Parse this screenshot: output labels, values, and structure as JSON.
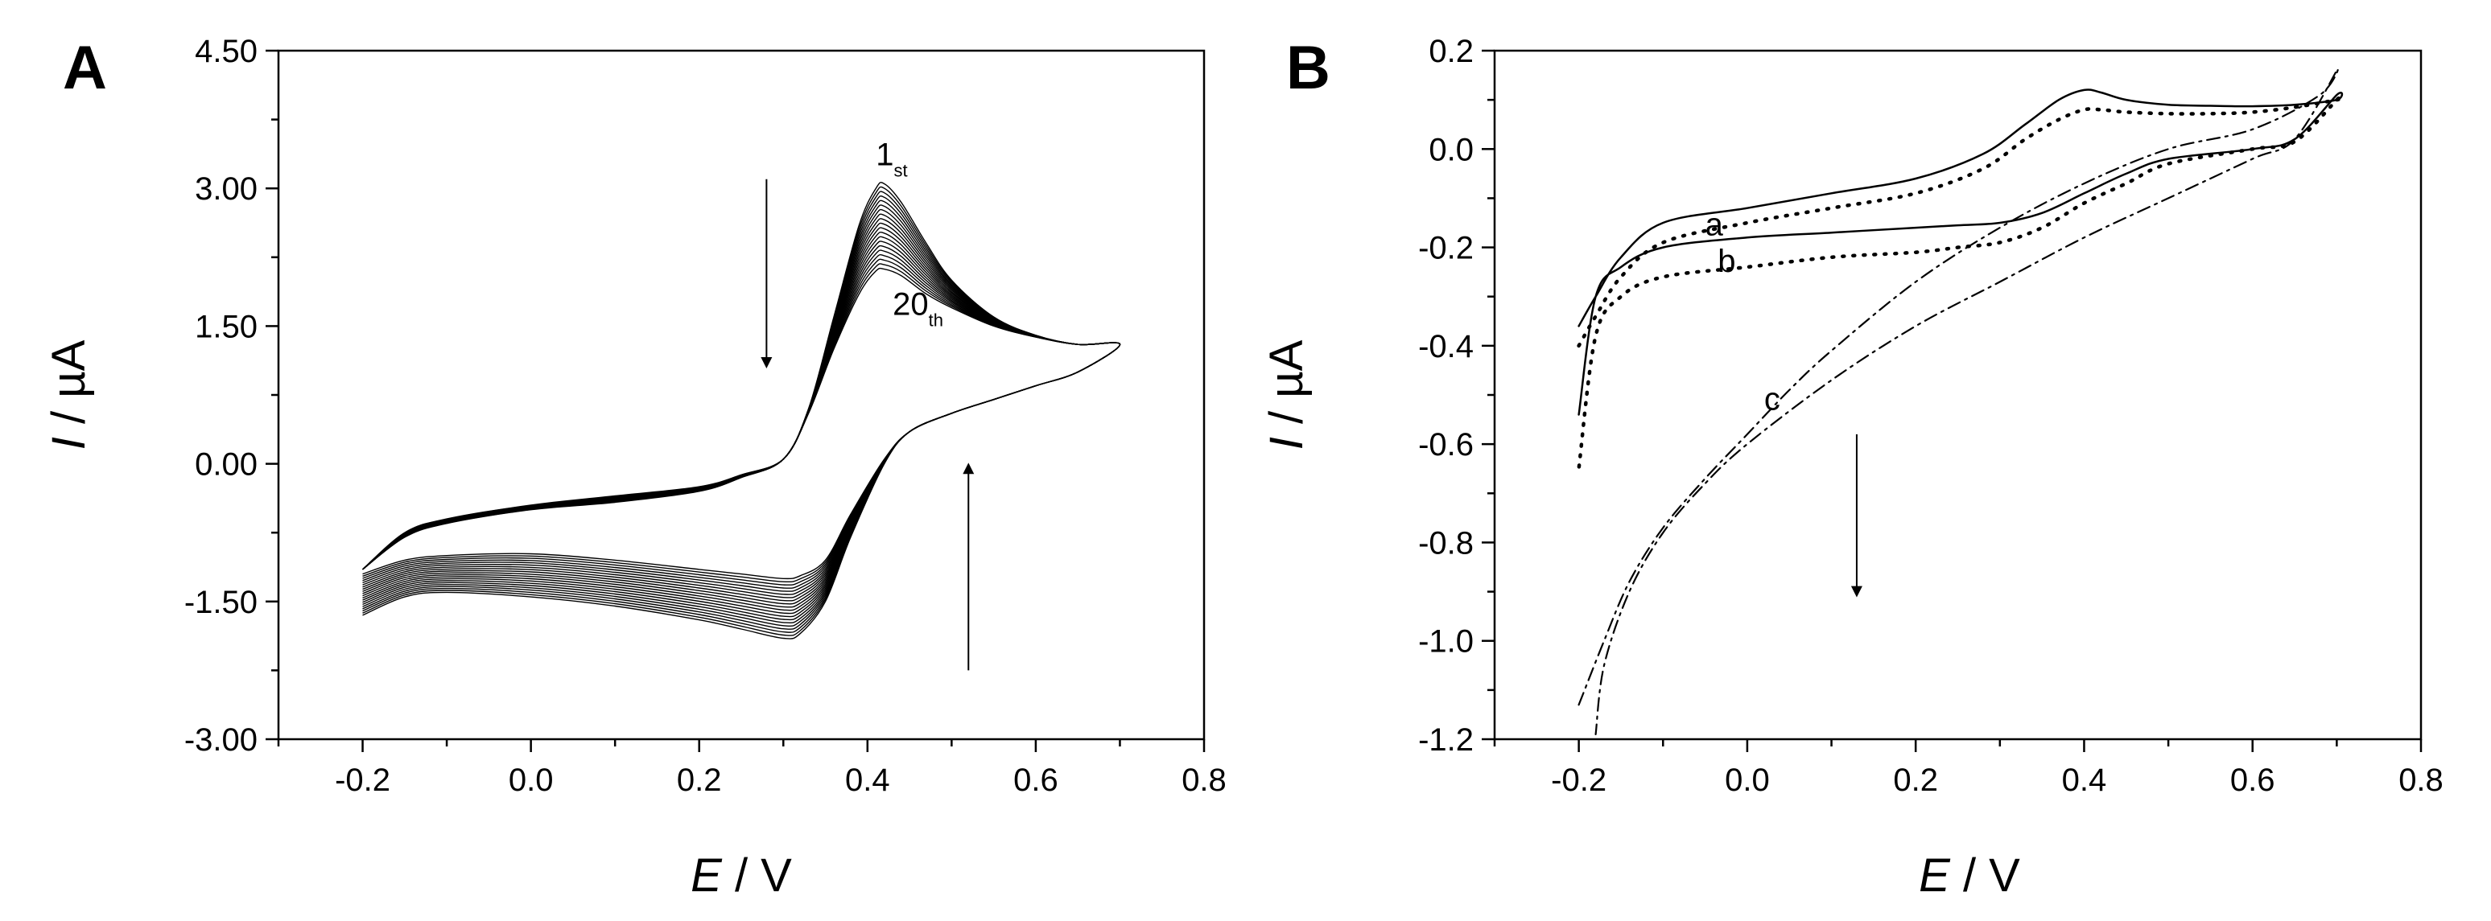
{
  "chart_data": [
    {
      "type": "line",
      "panel_label": "A",
      "xlabel_var": "E",
      "xlabel_unit": " / V",
      "ylabel_var": "I",
      "ylabel_unit": " / µA",
      "xlim": [
        -0.3,
        0.8
      ],
      "ylim": [
        -3.0,
        4.5
      ],
      "xticks": [
        -0.2,
        0.0,
        0.2,
        0.4,
        0.6,
        0.8
      ],
      "xtick_labels": [
        "-0.2",
        "0.0",
        "0.2",
        "0.4",
        "0.6",
        "0.8"
      ],
      "yticks": [
        -3.0,
        -1.5,
        0.0,
        1.5,
        3.0,
        4.5
      ],
      "ytick_labels": [
        "-3.00",
        "-1.50",
        "0.00",
        "1.50",
        "3.00",
        "4.50"
      ],
      "grid": false,
      "series_description": "20 successive cyclic voltammetry scans (1st to 20th)",
      "n_scans": 20,
      "first_scan": {
        "name": "1st",
        "forward_x": [
          -0.2,
          -0.15,
          -0.1,
          0.0,
          0.1,
          0.2,
          0.25,
          0.3,
          0.33,
          0.36,
          0.39,
          0.41,
          0.42,
          0.44,
          0.47,
          0.5,
          0.55,
          0.6,
          0.65,
          0.7
        ],
        "forward_y": [
          -1.15,
          -0.8,
          -0.65,
          -0.5,
          -0.42,
          -0.3,
          -0.15,
          0.05,
          0.6,
          1.6,
          2.6,
          3.0,
          3.05,
          2.85,
          2.4,
          2.0,
          1.6,
          1.4,
          1.3,
          1.3
        ],
        "reverse_x": [
          0.7,
          0.65,
          0.6,
          0.55,
          0.5,
          0.45,
          0.42,
          0.38,
          0.35,
          0.32,
          0.3,
          0.25,
          0.2,
          0.1,
          0.0,
          -0.1,
          -0.15,
          -0.2
        ],
        "reverse_y": [
          1.3,
          1.0,
          0.85,
          0.7,
          0.55,
          0.35,
          0.0,
          -0.8,
          -1.5,
          -1.85,
          -1.9,
          -1.8,
          -1.7,
          -1.55,
          -1.45,
          -1.4,
          -1.45,
          -1.65
        ]
      },
      "last_scan": {
        "name": "20th",
        "forward_x": [
          -0.2,
          -0.15,
          -0.1,
          0.0,
          0.1,
          0.2,
          0.25,
          0.3,
          0.33,
          0.36,
          0.39,
          0.41,
          0.42,
          0.44,
          0.47,
          0.5,
          0.55,
          0.6,
          0.65,
          0.7
        ],
        "forward_y": [
          -1.15,
          -0.75,
          -0.6,
          -0.45,
          -0.35,
          -0.25,
          -0.12,
          0.05,
          0.55,
          1.25,
          1.85,
          2.1,
          2.12,
          2.05,
          1.85,
          1.7,
          1.5,
          1.38,
          1.3,
          1.3
        ],
        "reverse_x": [
          0.7,
          0.65,
          0.6,
          0.55,
          0.5,
          0.45,
          0.42,
          0.38,
          0.35,
          0.32,
          0.3,
          0.25,
          0.2,
          0.1,
          0.0,
          -0.1,
          -0.15,
          -0.2
        ],
        "reverse_y": [
          1.2,
          1.0,
          0.85,
          0.7,
          0.55,
          0.35,
          0.05,
          -0.55,
          -1.05,
          -1.22,
          -1.25,
          -1.2,
          -1.15,
          -1.05,
          -0.98,
          -1.0,
          -1.05,
          -1.2
        ]
      },
      "annotations": [
        {
          "text": "1",
          "sub": "st",
          "x": 0.41,
          "y": 3.25
        },
        {
          "text": "20",
          "sub": "th",
          "x": 0.43,
          "y": 1.62
        }
      ],
      "arrows": [
        {
          "x": 0.28,
          "y_from": 3.1,
          "y_to": 1.1
        },
        {
          "x": 0.52,
          "y_from": -2.25,
          "y_to": -0.05
        }
      ]
    },
    {
      "type": "line",
      "panel_label": "B",
      "xlabel_var": "E",
      "xlabel_unit": " / V",
      "ylabel_var": "I",
      "ylabel_unit": " / µA",
      "xlim": [
        -0.3,
        0.8
      ],
      "ylim": [
        -1.2,
        0.2
      ],
      "xticks": [
        -0.2,
        0.0,
        0.2,
        0.4,
        0.6,
        0.8
      ],
      "xtick_labels": [
        "-0.2",
        "0.0",
        "0.2",
        "0.4",
        "0.6",
        "0.8"
      ],
      "yticks": [
        -1.2,
        -1.0,
        -0.8,
        -0.6,
        -0.4,
        -0.2,
        0.0,
        0.2
      ],
      "ytick_labels": [
        "-1.2",
        "-1.0",
        "-0.8",
        "-0.6",
        "-0.4",
        "-0.2",
        "0.0",
        "0.2"
      ],
      "grid": false,
      "series": [
        {
          "name": "a",
          "style": "solid",
          "x": [
            -0.2,
            -0.18,
            -0.15,
            -0.1,
            0.0,
            0.1,
            0.2,
            0.28,
            0.33,
            0.37,
            0.4,
            0.42,
            0.45,
            0.5,
            0.55,
            0.6,
            0.65,
            0.7,
            0.7,
            0.65,
            0.6,
            0.5,
            0.45,
            0.4,
            0.35,
            0.3,
            0.25,
            0.2,
            0.1,
            0.0,
            -0.1,
            -0.15,
            -0.18,
            -0.2
          ],
          "y": [
            -0.36,
            -0.3,
            -0.22,
            -0.15,
            -0.12,
            -0.09,
            -0.06,
            -0.01,
            0.05,
            0.1,
            0.12,
            0.115,
            0.1,
            0.09,
            0.088,
            0.087,
            0.09,
            0.1,
            0.11,
            0.02,
            0.0,
            -0.02,
            -0.05,
            -0.09,
            -0.13,
            -0.15,
            -0.155,
            -0.16,
            -0.17,
            -0.18,
            -0.2,
            -0.24,
            -0.3,
            -0.54
          ]
        },
        {
          "name": "b",
          "style": "dotted",
          "x": [
            -0.2,
            -0.18,
            -0.15,
            -0.1,
            0.0,
            0.1,
            0.2,
            0.28,
            0.33,
            0.37,
            0.4,
            0.42,
            0.45,
            0.5,
            0.55,
            0.6,
            0.65,
            0.7,
            0.7,
            0.65,
            0.6,
            0.5,
            0.45,
            0.4,
            0.35,
            0.3,
            0.25,
            0.2,
            0.1,
            0.0,
            -0.1,
            -0.15,
            -0.18,
            -0.2
          ],
          "y": [
            -0.4,
            -0.34,
            -0.26,
            -0.19,
            -0.15,
            -0.12,
            -0.09,
            -0.04,
            0.02,
            0.06,
            0.08,
            0.08,
            0.075,
            0.072,
            0.072,
            0.075,
            0.085,
            0.1,
            0.1,
            0.015,
            0.0,
            -0.03,
            -0.07,
            -0.11,
            -0.16,
            -0.19,
            -0.2,
            -0.21,
            -0.22,
            -0.24,
            -0.26,
            -0.3,
            -0.38,
            -0.65
          ]
        },
        {
          "name": "c",
          "style": "dashdot",
          "x": [
            -0.2,
            -0.17,
            -0.14,
            -0.1,
            -0.05,
            0.0,
            0.05,
            0.1,
            0.2,
            0.3,
            0.4,
            0.5,
            0.6,
            0.68,
            0.7,
            0.65,
            0.6,
            0.5,
            0.4,
            0.3,
            0.2,
            0.1,
            0.0,
            -0.05,
            -0.1,
            -0.14,
            -0.17,
            -0.18
          ],
          "y": [
            -1.13,
            -1.0,
            -0.88,
            -0.77,
            -0.67,
            -0.58,
            -0.49,
            -0.41,
            -0.27,
            -0.16,
            -0.07,
            0.0,
            0.04,
            0.11,
            0.16,
            0.02,
            -0.02,
            -0.1,
            -0.18,
            -0.27,
            -0.36,
            -0.47,
            -0.6,
            -0.68,
            -0.78,
            -0.9,
            -1.05,
            -1.19
          ]
        }
      ],
      "annotations": [
        {
          "text": "a",
          "x": -0.05,
          "y": -0.175
        },
        {
          "text": "b",
          "x": -0.035,
          "y": -0.25
        },
        {
          "text": "c",
          "x": 0.02,
          "y": -0.53
        }
      ],
      "arrows": [
        {
          "x": 0.13,
          "y_from": -0.58,
          "y_to": -0.9
        }
      ]
    }
  ]
}
